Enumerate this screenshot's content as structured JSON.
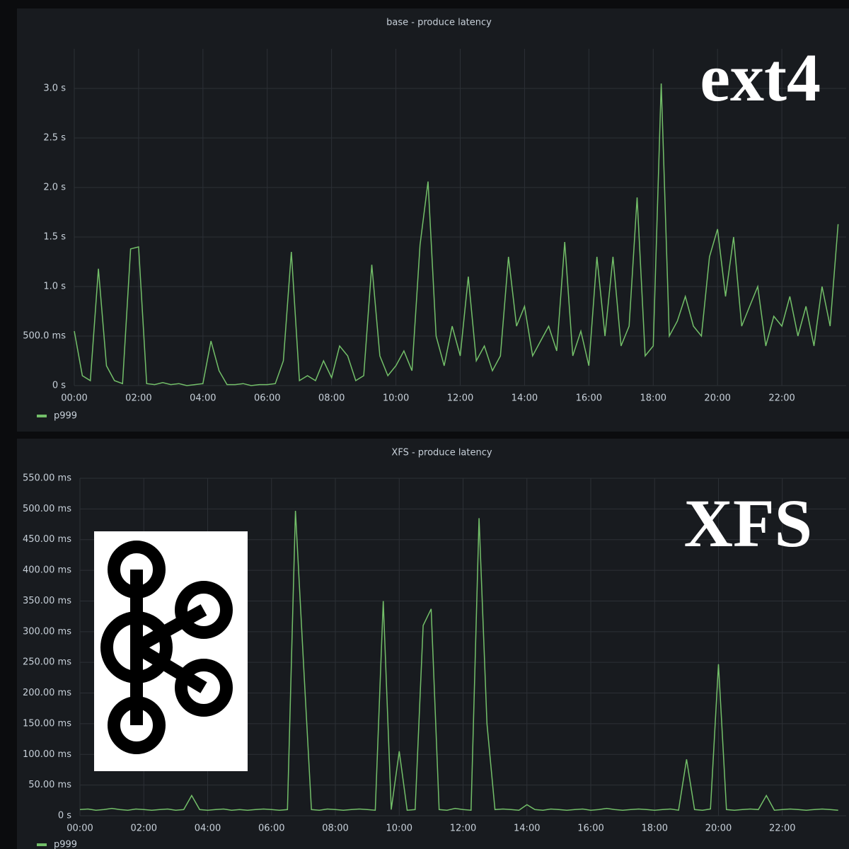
{
  "chart_data": [
    {
      "type": "line",
      "title": "base - produce latency",
      "annotation": "ext4",
      "x": [
        0,
        0.25,
        0.5,
        0.75,
        1,
        1.25,
        1.5,
        1.75,
        2,
        2.25,
        2.5,
        2.75,
        3,
        3.25,
        3.5,
        3.75,
        4,
        4.25,
        4.5,
        4.75,
        5,
        5.25,
        5.5,
        5.75,
        6,
        6.25,
        6.5,
        6.75,
        7,
        7.25,
        7.5,
        7.75,
        8,
        8.25,
        8.5,
        8.75,
        9,
        9.25,
        9.5,
        9.75,
        10,
        10.25,
        10.5,
        10.75,
        11,
        11.25,
        11.5,
        11.75,
        12,
        12.25,
        12.5,
        12.75,
        13,
        13.25,
        13.5,
        13.75,
        14,
        14.25,
        14.5,
        14.75,
        15,
        15.25,
        15.5,
        15.75,
        16,
        16.25,
        16.5,
        16.75,
        17,
        17.25,
        17.5,
        17.75,
        18,
        18.25,
        18.5,
        18.75,
        19,
        19.25,
        19.5,
        19.75,
        20,
        20.25,
        20.5,
        20.75,
        21,
        21.25,
        21.5,
        21.75,
        22,
        22.25,
        22.5,
        22.75,
        23,
        23.25,
        23.5,
        23.75
      ],
      "series": [
        {
          "name": "p999",
          "color": "#73bf69",
          "values": [
            0.55,
            0.1,
            0.05,
            1.18,
            0.2,
            0.05,
            0.02,
            1.38,
            1.4,
            0.02,
            0.01,
            0.03,
            0.01,
            0.02,
            0,
            0.01,
            0.02,
            0.45,
            0.15,
            0.01,
            0.01,
            0.02,
            0,
            0.01,
            0.01,
            0.02,
            0.25,
            1.35,
            0.05,
            0.1,
            0.05,
            0.25,
            0.08,
            0.4,
            0.3,
            0.05,
            0.1,
            1.22,
            0.3,
            0.1,
            0.2,
            0.35,
            0.15,
            1.42,
            2.06,
            0.5,
            0.2,
            0.6,
            0.3,
            1.1,
            0.25,
            0.4,
            0.15,
            0.3,
            1.3,
            0.6,
            0.8,
            0.3,
            0.45,
            0.6,
            0.35,
            1.45,
            0.3,
            0.55,
            0.2,
            1.3,
            0.5,
            1.3,
            0.4,
            0.6,
            1.9,
            0.3,
            0.4,
            3.05,
            0.5,
            0.65,
            0.9,
            0.6,
            0.5,
            1.3,
            1.58,
            0.9,
            1.5,
            0.6,
            0.8,
            1.0,
            0.4,
            0.7,
            0.6,
            0.9,
            0.5,
            0.8,
            0.4,
            1.0,
            0.6,
            1.63
          ]
        }
      ],
      "xlim": [
        0,
        24
      ],
      "xticks": [
        {
          "value": 0,
          "label": "00:00"
        },
        {
          "value": 2,
          "label": "02:00"
        },
        {
          "value": 4,
          "label": "04:00"
        },
        {
          "value": 6,
          "label": "06:00"
        },
        {
          "value": 8,
          "label": "08:00"
        },
        {
          "value": 10,
          "label": "10:00"
        },
        {
          "value": 12,
          "label": "12:00"
        },
        {
          "value": 14,
          "label": "14:00"
        },
        {
          "value": 16,
          "label": "16:00"
        },
        {
          "value": 18,
          "label": "18:00"
        },
        {
          "value": 20,
          "label": "20:00"
        },
        {
          "value": 22,
          "label": "22:00"
        }
      ],
      "ylim": [
        0,
        3.4
      ],
      "yticks": [
        {
          "value": 0,
          "label": "0 s"
        },
        {
          "value": 0.5,
          "label": "500.0 ms"
        },
        {
          "value": 1,
          "label": "1.0 s"
        },
        {
          "value": 1.5,
          "label": "1.5 s"
        },
        {
          "value": 2,
          "label": "2.0 s"
        },
        {
          "value": 2.5,
          "label": "2.5 s"
        },
        {
          "value": 3,
          "label": "3.0 s"
        }
      ],
      "grid": true
    },
    {
      "type": "line",
      "title": "XFS - produce latency",
      "annotation": "XFS",
      "x": [
        0,
        0.25,
        0.5,
        0.75,
        1,
        1.25,
        1.5,
        1.75,
        2,
        2.25,
        2.5,
        2.75,
        3,
        3.25,
        3.5,
        3.75,
        4,
        4.25,
        4.5,
        4.75,
        5,
        5.25,
        5.5,
        5.75,
        6,
        6.25,
        6.5,
        6.75,
        7,
        7.25,
        7.5,
        7.75,
        8,
        8.25,
        8.5,
        8.75,
        9,
        9.25,
        9.5,
        9.75,
        10,
        10.25,
        10.5,
        10.75,
        11,
        11.25,
        11.5,
        11.75,
        12,
        12.25,
        12.5,
        12.75,
        13,
        13.25,
        13.5,
        13.75,
        14,
        14.25,
        14.5,
        14.75,
        15,
        15.25,
        15.5,
        15.75,
        16,
        16.25,
        16.5,
        16.75,
        17,
        17.25,
        17.5,
        17.75,
        18,
        18.25,
        18.5,
        18.75,
        19,
        19.25,
        19.5,
        19.75,
        20,
        20.25,
        20.5,
        20.75,
        21,
        21.25,
        21.5,
        21.75,
        22,
        22.25,
        22.5,
        22.75,
        23,
        23.25,
        23.5,
        23.75
      ],
      "series": [
        {
          "name": "p999",
          "color": "#73bf69",
          "values": [
            10,
            11,
            9,
            10,
            12,
            10,
            9,
            11,
            10,
            9,
            10,
            11,
            9,
            10,
            33,
            10,
            9,
            10,
            11,
            9,
            10,
            9,
            10,
            11,
            10,
            9,
            10,
            497,
            250,
            10,
            9,
            11,
            10,
            9,
            10,
            11,
            10,
            9,
            350,
            10,
            105,
            9,
            10,
            310,
            337,
            10,
            9,
            12,
            10,
            9,
            485,
            150,
            10,
            11,
            10,
            9,
            18,
            10,
            9,
            11,
            10,
            9,
            10,
            11,
            9,
            10,
            12,
            10,
            9,
            10,
            11,
            10,
            9,
            10,
            11,
            9,
            92,
            10,
            9,
            11,
            247,
            10,
            9,
            10,
            11,
            10,
            33,
            9,
            10,
            11,
            10,
            9,
            10,
            11,
            10,
            9
          ]
        }
      ],
      "xlim": [
        0,
        24
      ],
      "xticks": [
        {
          "value": 0,
          "label": "00:00"
        },
        {
          "value": 2,
          "label": "02:00"
        },
        {
          "value": 4,
          "label": "04:00"
        },
        {
          "value": 6,
          "label": "06:00"
        },
        {
          "value": 8,
          "label": "08:00"
        },
        {
          "value": 10,
          "label": "10:00"
        },
        {
          "value": 12,
          "label": "12:00"
        },
        {
          "value": 14,
          "label": "14:00"
        },
        {
          "value": 16,
          "label": "16:00"
        },
        {
          "value": 18,
          "label": "18:00"
        },
        {
          "value": 20,
          "label": "20:00"
        },
        {
          "value": 22,
          "label": "22:00"
        }
      ],
      "ylim": [
        0,
        550
      ],
      "yticks": [
        {
          "value": 0,
          "label": "0 s"
        },
        {
          "value": 50,
          "label": "50.00 ms"
        },
        {
          "value": 100,
          "label": "100.00 ms"
        },
        {
          "value": 150,
          "label": "150.00 ms"
        },
        {
          "value": 200,
          "label": "200.00 ms"
        },
        {
          "value": 250,
          "label": "250.00 ms"
        },
        {
          "value": 300,
          "label": "300.00 ms"
        },
        {
          "value": 350,
          "label": "350.00 ms"
        },
        {
          "value": 400,
          "label": "400.00 ms"
        },
        {
          "value": 450,
          "label": "450.00 ms"
        },
        {
          "value": 500,
          "label": "500.00 ms"
        },
        {
          "value": 550,
          "label": "550.00 ms"
        }
      ],
      "grid": true
    }
  ]
}
